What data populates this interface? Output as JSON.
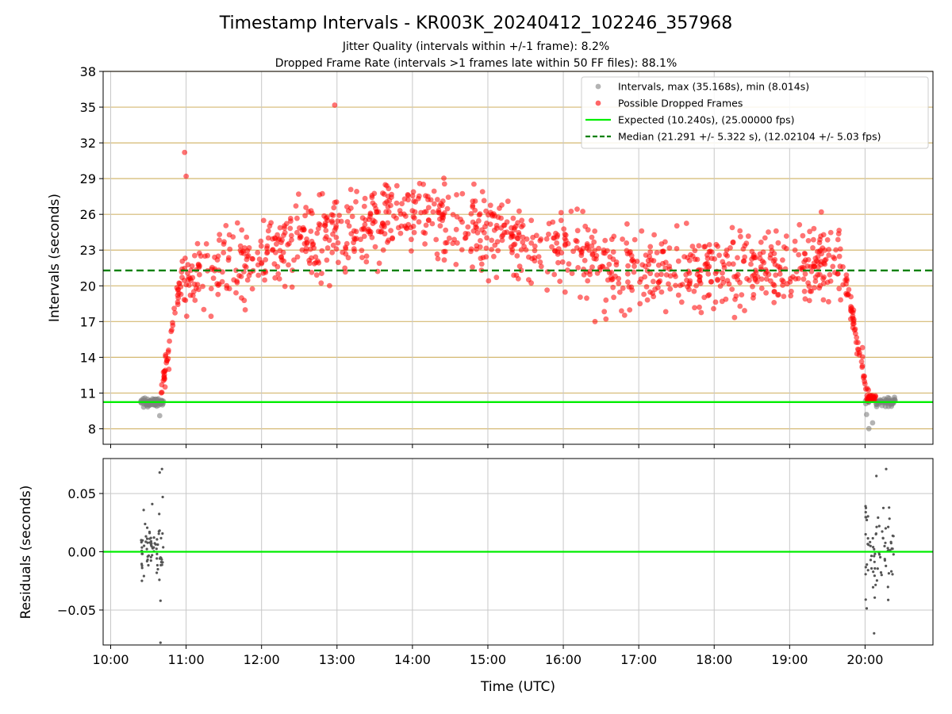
{
  "chart_data": [
    {
      "type": "scatter",
      "title": "Timestamp Intervals - KR003K_20240412_102246_357968",
      "subtitle_1": "Jitter Quality (intervals within +/-1 frame): 8.2%",
      "subtitle_2": "Dropped Frame Rate (intervals >1 frames late within 50 FF files): 88.1%",
      "ylabel": "Intervals (seconds)",
      "ylim": [
        6.7,
        38
      ],
      "yticks": [
        "8",
        "11",
        "14",
        "17",
        "20",
        "23",
        "26",
        "29",
        "32",
        "35",
        "38"
      ],
      "xlim": [
        "09:54",
        "20:54"
      ],
      "grid": true,
      "legend_position": "top-right",
      "legend": [
        "Intervals, max (35.168s), min (8.014s)",
        "Possible Dropped Frames",
        "Expected (10.240s), (25.00000 fps)",
        "Median (21.291 +/- 5.322 s), (12.02104 +/- 5.03 fps)"
      ],
      "expected_interval": 10.24,
      "median_interval": 21.291,
      "max_interval": 35.168,
      "min_interval": 8.014,
      "series": [
        {
          "name": "Intervals, max (35.168s), min (8.014s)",
          "color": "#808080",
          "pattern": "normal intervals ~10.24 s near 10:24–10:42 and 20:00–20:24"
        },
        {
          "name": "Possible Dropped Frames",
          "color": "#ff0000",
          "pattern": "rises from ~11 s at 10:40 to ~22 s by 11:00, peaks ~26 s near 13:30–14:00, declines to ~21 s at 17:00–19:30, drops back to ~11 s near 20:00"
        }
      ]
    },
    {
      "type": "scatter",
      "xlabel": "Time (UTC)",
      "ylabel": "Residuals (seconds)",
      "ylim": [
        -0.08,
        0.08
      ],
      "yticks": [
        "−0.05",
        "0.00",
        "0.05"
      ],
      "xticks": [
        "10:00",
        "11:00",
        "12:00",
        "13:00",
        "14:00",
        "15:00",
        "16:00",
        "17:00",
        "18:00",
        "19:00",
        "20:00"
      ],
      "grid": true,
      "zero_line_color": "#00ee00",
      "series": [
        {
          "color": "#555555",
          "pattern": "residuals of normal intervals clustered near 10:24–10:42 and 20:00–20:24, range about -0.08 to 0.07"
        }
      ]
    }
  ],
  "colors": {
    "expected_line": "#00ee00",
    "median_line": "#008000",
    "gridline_y_top": "#d4b870",
    "gridline": "#c8c8c8"
  }
}
